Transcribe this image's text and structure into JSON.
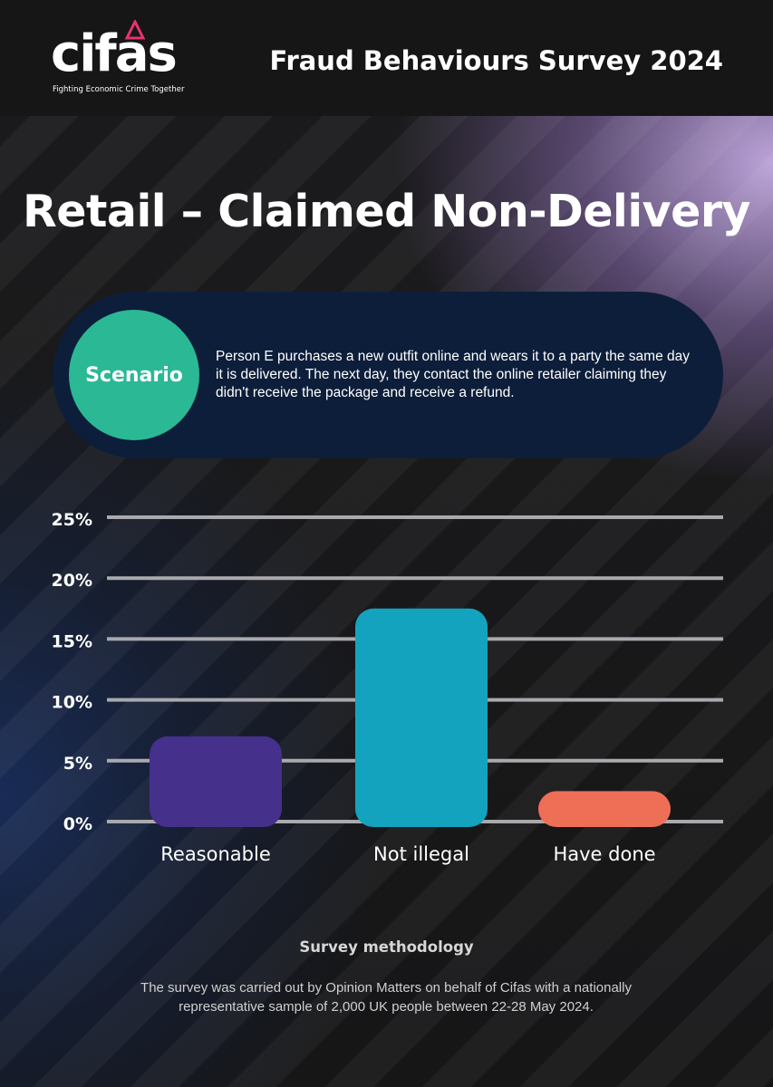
{
  "header": {
    "logo_text": "cifas",
    "logo_tagline": "Fighting Economic Crime Together",
    "survey_title": "Fraud Behaviours Survey 2024"
  },
  "main": {
    "title": "Retail – Claimed Non-Delivery",
    "scenario": {
      "label": "Scenario",
      "text": "Person E purchases a new outfit online and wears it to a party the same day it is delivered. The next day, they contact the online retailer claiming they didn't receive the package and receive a refund."
    }
  },
  "chart_data": {
    "type": "bar",
    "categories": [
      "Reasonable",
      "Not illegal",
      "Have done"
    ],
    "values": [
      7,
      17.5,
      2.5
    ],
    "unit": "%",
    "ylim": [
      0,
      25
    ],
    "yticks": [
      "0%",
      "5%",
      "10%",
      "15%",
      "20%",
      "25%"
    ],
    "grid": true,
    "colors": [
      "#45308c",
      "#13a3be",
      "#ef6e56"
    ]
  },
  "footer": {
    "methodology_title": "Survey methodology",
    "methodology_text": "The survey was carried out by Opinion Matters on behalf of Cifas with a nationally representative sample of 2,000 UK people between 22-28 May 2024."
  },
  "colors": {
    "header_bg": "#161616",
    "scenario_bg": "#0d1e3a",
    "scenario_circle": "#2bb895",
    "logo_accent": "#e8336e"
  }
}
